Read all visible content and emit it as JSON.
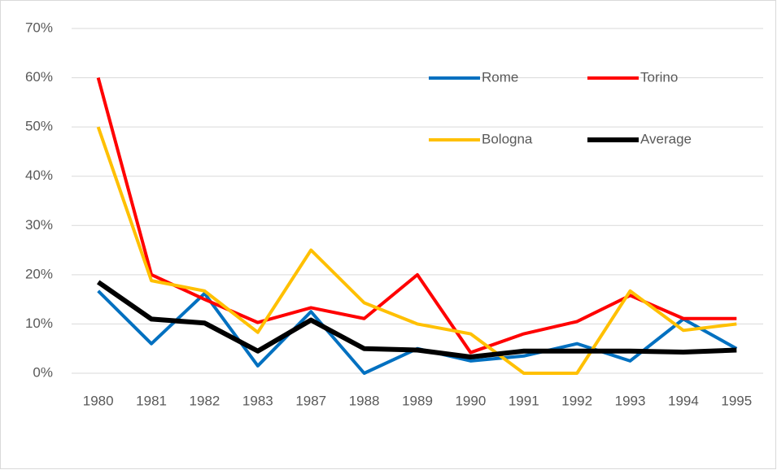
{
  "chart_data": {
    "type": "line",
    "categories": [
      "1980",
      "1981",
      "1982",
      "1983",
      "1987",
      "1988",
      "1989",
      "1990",
      "1991",
      "1992",
      "1993",
      "1994",
      "1995"
    ],
    "series": [
      {
        "name": "Rome",
        "color": "#0070c0",
        "values": [
          16.7,
          6,
          16.2,
          1.5,
          12.5,
          0,
          5,
          2.5,
          3.5,
          6,
          2.5,
          11,
          5
        ]
      },
      {
        "name": "Torino",
        "color": "#ff0000",
        "values": [
          60,
          20,
          15,
          10.3,
          13.3,
          11.1,
          20,
          4.2,
          8,
          10.5,
          15.8,
          11.1,
          11.1
        ]
      },
      {
        "name": "Bologna",
        "color": "#ffc000",
        "values": [
          50,
          18.8,
          16.7,
          8.3,
          25,
          14.3,
          10,
          8,
          0,
          0,
          16.7,
          8.7,
          10
        ]
      },
      {
        "name": "Average",
        "color": "#000000",
        "values": [
          18.5,
          11,
          10.2,
          4.5,
          10.8,
          5,
          4.7,
          3.3,
          4.5,
          4.5,
          4.5,
          4.3,
          4.7
        ]
      }
    ],
    "ylim": [
      0,
      70
    ],
    "yticks": [
      {
        "value": 0,
        "label": "0%"
      },
      {
        "value": 10,
        "label": "10%"
      },
      {
        "value": 20,
        "label": "20%"
      },
      {
        "value": 30,
        "label": "30%"
      },
      {
        "value": 40,
        "label": "40%"
      },
      {
        "value": 50,
        "label": "50%"
      },
      {
        "value": 60,
        "label": "60%"
      },
      {
        "value": 70,
        "label": "70%"
      }
    ],
    "grid": true,
    "legend_position": "top-right"
  }
}
